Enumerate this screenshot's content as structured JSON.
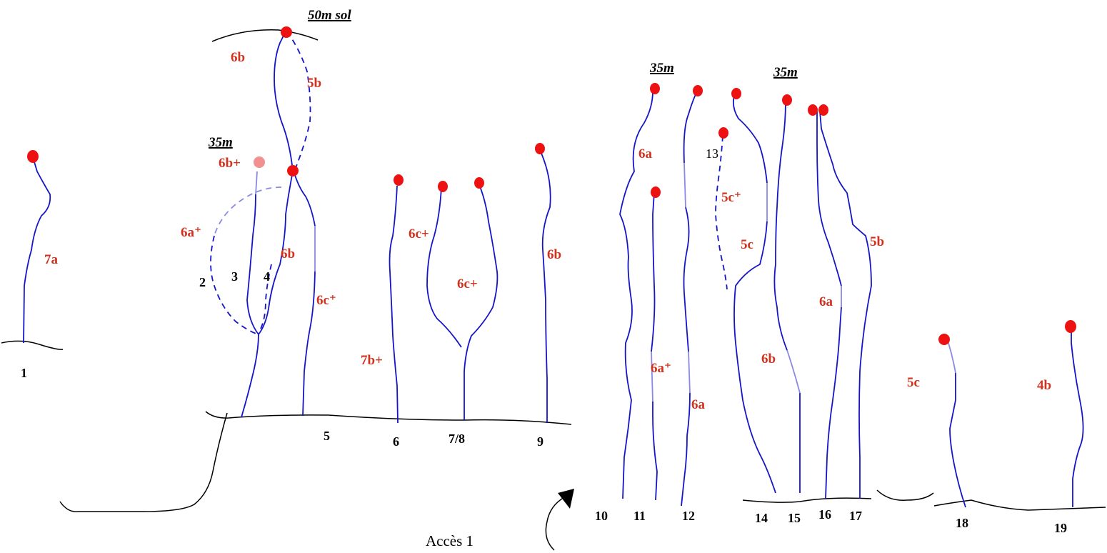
{
  "heights": {
    "top_sol": "50m sol",
    "left_relay": "35m",
    "right_a": "35m",
    "right_b": "35m"
  },
  "access": {
    "label": "Accès 1"
  },
  "routes": [
    {
      "number": "1",
      "grade": "7a"
    },
    {
      "number": "2",
      "grade": "6a⁺"
    },
    {
      "number": "3",
      "grade": "6b+"
    },
    {
      "number": "4",
      "grade": "6b"
    },
    {
      "number": "5",
      "grade": "6c⁺"
    },
    {
      "number": "6",
      "grade": "7b+"
    },
    {
      "number": "7/8",
      "grades": [
        "6c+",
        "6c+"
      ]
    },
    {
      "number": "9",
      "grade": "6b"
    },
    {
      "number": "10",
      "grade": "6a"
    },
    {
      "number": "11",
      "grade": "6a⁺"
    },
    {
      "number": "12",
      "grade": "6a"
    },
    {
      "number": "13",
      "grade": "5c⁺"
    },
    {
      "number": "14",
      "grade": "5c"
    },
    {
      "number": "15",
      "grade": "6b"
    },
    {
      "number": "16",
      "grade": "6a"
    },
    {
      "number": "17",
      "grade": "5b"
    },
    {
      "number": "18",
      "grade": "5c"
    },
    {
      "number": "19",
      "grade": "4b"
    }
  ],
  "top_pitch": {
    "grade_left": "6b",
    "grade_right": "5b"
  }
}
